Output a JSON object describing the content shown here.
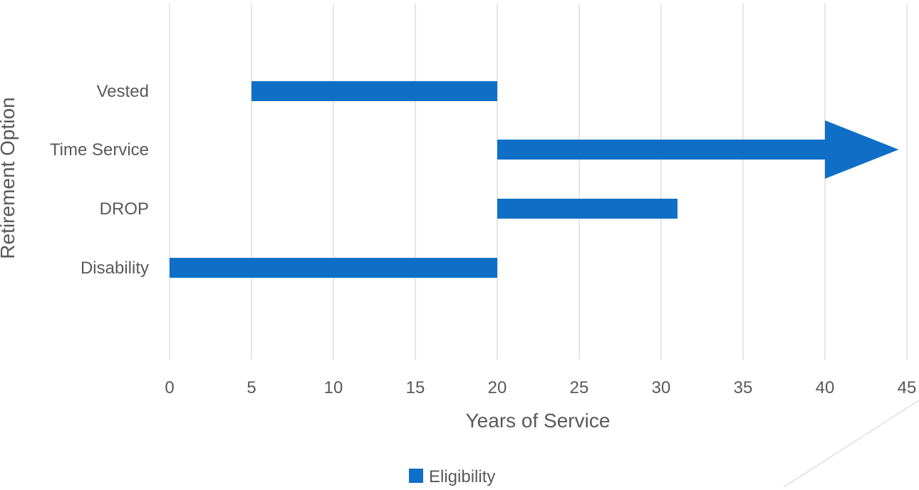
{
  "chart_data": {
    "type": "bar",
    "orientation": "horizontal",
    "xlabel": "Years of Service",
    "ylabel": "Retirement Option",
    "xlim": [
      0,
      45
    ],
    "xticks": [
      0,
      5,
      10,
      15,
      20,
      25,
      30,
      35,
      40,
      45
    ],
    "grid": true,
    "legend": {
      "position": "bottom",
      "entries": [
        "Eligibility"
      ]
    },
    "series": [
      {
        "name": "Eligibility",
        "color": "#0F6FC6",
        "bars": [
          {
            "category": "Vested",
            "start": 5,
            "end": 20
          },
          {
            "category": "Time Service",
            "start": 20,
            "end": 40,
            "arrow_end": 44.5
          },
          {
            "category": "DROP",
            "start": 20,
            "end": 31
          },
          {
            "category": "Disability",
            "start": 0,
            "end": 20
          }
        ]
      }
    ]
  }
}
